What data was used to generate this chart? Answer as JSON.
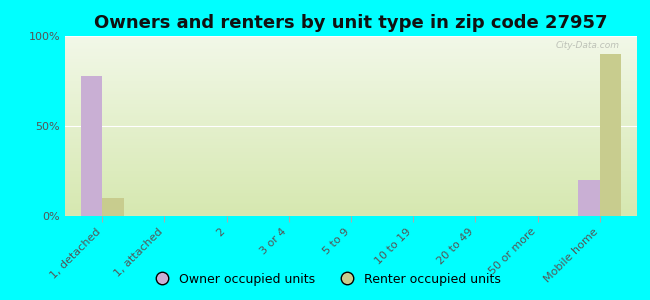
{
  "title": "Owners and renters by unit type in zip code 27957",
  "categories": [
    "1, detached",
    "1, attached",
    "2",
    "3 or 4",
    "5 to 9",
    "10 to 19",
    "20 to 49",
    "50 or more",
    "Mobile home"
  ],
  "owner_values": [
    78,
    0,
    0,
    0,
    0,
    0,
    0,
    0,
    20
  ],
  "renter_values": [
    10,
    0,
    0,
    0,
    0,
    0,
    0,
    0,
    90
  ],
  "owner_color": "#c9afd4",
  "renter_color": "#c8cc8e",
  "background_color": "#00ffff",
  "grad_top": "#d6e8b0",
  "grad_bottom": "#f2f8e8",
  "ylabel_ticks": [
    "0%",
    "50%",
    "100%"
  ],
  "ytick_values": [
    0,
    50,
    100
  ],
  "ylim": [
    0,
    100
  ],
  "bar_width": 0.35,
  "title_fontsize": 13,
  "tick_fontsize": 8,
  "legend_fontsize": 9,
  "watermark": "City-Data.com"
}
